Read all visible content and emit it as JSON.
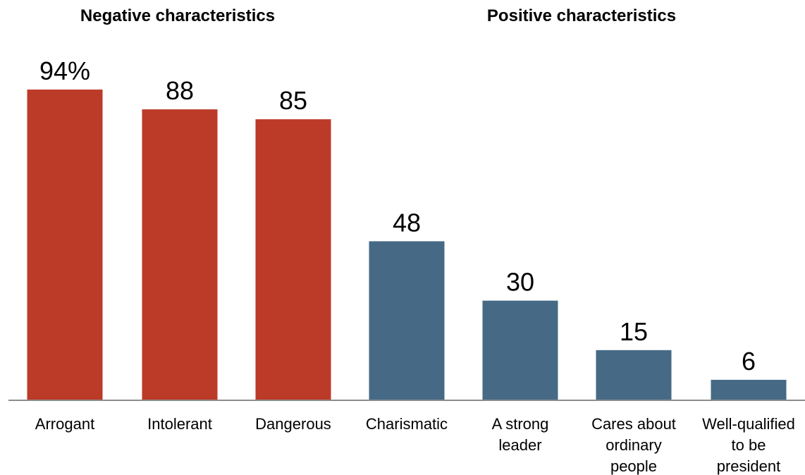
{
  "chart_data": {
    "type": "bar",
    "group_titles": [
      "Negative characteristics",
      "Positive characteristics"
    ],
    "categories": [
      "Arrogant",
      "Intolerant",
      "Dangerous",
      "Charismatic",
      "A strong leader",
      "Cares about ordinary people",
      "Well-qualified to be president"
    ],
    "category_lines": [
      [
        "Arrogant"
      ],
      [
        "Intolerant"
      ],
      [
        "Dangerous"
      ],
      [
        "Charismatic"
      ],
      [
        "A strong",
        "leader"
      ],
      [
        "Cares about",
        "ordinary",
        "people"
      ],
      [
        "Well-qualified",
        "to be",
        "president"
      ]
    ],
    "values": [
      94,
      88,
      85,
      48,
      30,
      15,
      6
    ],
    "value_labels": [
      "94%",
      "88",
      "85",
      "48",
      "30",
      "15",
      "6"
    ],
    "groups": [
      "negative",
      "negative",
      "negative",
      "positive",
      "positive",
      "positive",
      "positive"
    ],
    "colors": {
      "negative": "#bc3a28",
      "positive": "#466a86",
      "axis": "#8c8c8c"
    },
    "ylim": [
      0,
      100
    ],
    "grid": false,
    "legend": "none"
  }
}
